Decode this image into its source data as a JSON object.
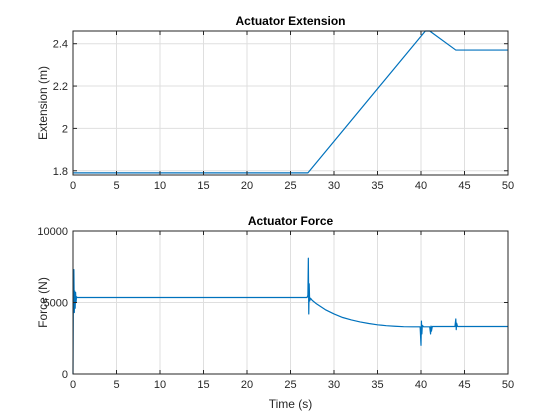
{
  "colors": {
    "series": "#0072bd",
    "background": "#ffffff",
    "grid": "#dfdfdf",
    "axis": "#262626"
  },
  "chart_data": [
    {
      "type": "line",
      "title": "Actuator Extension",
      "xlabel": "",
      "ylabel": "Extension (m)",
      "xlim": [
        0,
        50
      ],
      "ylim": [
        1.78,
        2.46
      ],
      "xticks": [
        0,
        5,
        10,
        15,
        20,
        25,
        30,
        35,
        40,
        45,
        50
      ],
      "yticks": [
        1.8,
        2.0,
        2.2,
        2.4
      ],
      "ytick_labels": [
        "1.8",
        "2",
        "2.2",
        "2.4"
      ],
      "grid": true,
      "series": [
        {
          "x": [
            0,
            27,
            40.5,
            41,
            44,
            50
          ],
          "y": [
            1.79,
            1.79,
            2.46,
            2.46,
            2.37,
            2.37
          ]
        }
      ]
    },
    {
      "type": "line",
      "title": "Actuator Force",
      "xlabel": "Time (s)",
      "ylabel": "Force (N)",
      "xlim": [
        0,
        50
      ],
      "ylim": [
        0,
        10000
      ],
      "xticks": [
        0,
        5,
        10,
        15,
        20,
        25,
        30,
        35,
        40,
        45,
        50
      ],
      "yticks": [
        0,
        5000,
        10000
      ],
      "ytick_labels": [
        "0",
        "5000",
        "10000"
      ],
      "grid": true,
      "series": [
        {
          "x": [
            0,
            0.05,
            0.1,
            0.15,
            0.2,
            0.25,
            0.3,
            0.35,
            0.4,
            0.5,
            0.6,
            0.8,
            1,
            5,
            10,
            15,
            20,
            25,
            26.9,
            27.0,
            27.05,
            27.1,
            27.15,
            27.2,
            27.3,
            27.5,
            28,
            29,
            30,
            31,
            32,
            33,
            34,
            35,
            36,
            37,
            38,
            39,
            39.9,
            40.0,
            40.05,
            40.1,
            40.15,
            40.3,
            41,
            41.1,
            41.15,
            41.2,
            41.3,
            42,
            43,
            43.9,
            44.0,
            44.05,
            44.1,
            44.2,
            45,
            50
          ],
          "y": [
            0,
            6500,
            7300,
            4300,
            5800,
            4600,
            5700,
            5000,
            5400,
            5350,
            5350,
            5350,
            5350,
            5350,
            5350,
            5350,
            5350,
            5350,
            5350,
            5500,
            8100,
            4200,
            6300,
            5100,
            5300,
            5150,
            4900,
            4500,
            4200,
            3950,
            3780,
            3640,
            3530,
            3440,
            3380,
            3340,
            3310,
            3300,
            3300,
            2000,
            3700,
            2800,
            3400,
            3300,
            3300,
            2800,
            3350,
            3000,
            3320,
            3320,
            3320,
            3320,
            3850,
            3100,
            3550,
            3320,
            3320,
            3320
          ]
        }
      ]
    }
  ]
}
